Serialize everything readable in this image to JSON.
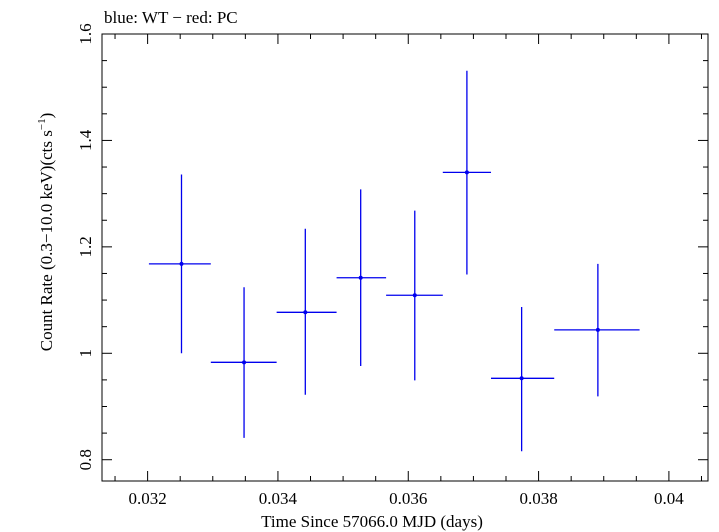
{
  "chart_data": {
    "type": "scatter",
    "title": "blue: WT − red: PC",
    "xlabel": "Time Since 57066.0 MJD (days)",
    "ylabel_main": "Count Rate (0.3−10.0 keV)(cts s",
    "ylabel_sup": "−1",
    "ylabel_tail": ")",
    "xlim": [
      0.0313,
      0.0406
    ],
    "ylim": [
      0.76,
      1.6
    ],
    "xticks": [
      0.032,
      0.034,
      0.036,
      0.038,
      0.04
    ],
    "xtick_labels": [
      "0.032",
      "0.034",
      "0.036",
      "0.038",
      "0.04"
    ],
    "yticks": [
      0.8,
      1.0,
      1.2,
      1.4,
      1.6
    ],
    "ytick_labels": [
      "0.8",
      "1",
      "1.2",
      "1.4",
      "1.6"
    ],
    "series": [
      {
        "color": "#0000ee",
        "points": [
          {
            "x": 0.03252,
            "y": 1.168,
            "xlo": 0.03202,
            "xhi": 0.03297,
            "ylo": 1.0,
            "yhi": 1.336
          },
          {
            "x": 0.03348,
            "y": 0.983,
            "xlo": 0.03297,
            "xhi": 0.03398,
            "ylo": 0.841,
            "yhi": 1.124
          },
          {
            "x": 0.03442,
            "y": 1.077,
            "xlo": 0.03398,
            "xhi": 0.0349,
            "ylo": 0.922,
            "yhi": 1.234
          },
          {
            "x": 0.03527,
            "y": 1.142,
            "xlo": 0.0349,
            "xhi": 0.03566,
            "ylo": 0.976,
            "yhi": 1.308
          },
          {
            "x": 0.0361,
            "y": 1.109,
            "xlo": 0.03566,
            "xhi": 0.03653,
            "ylo": 0.949,
            "yhi": 1.268
          },
          {
            "x": 0.0369,
            "y": 1.34,
            "xlo": 0.03653,
            "xhi": 0.03727,
            "ylo": 1.148,
            "yhi": 1.531
          },
          {
            "x": 0.03774,
            "y": 0.953,
            "xlo": 0.03727,
            "xhi": 0.03824,
            "ylo": 0.816,
            "yhi": 1.087
          },
          {
            "x": 0.03891,
            "y": 1.044,
            "xlo": 0.03824,
            "xhi": 0.03955,
            "ylo": 0.919,
            "yhi": 1.168
          }
        ]
      }
    ]
  }
}
